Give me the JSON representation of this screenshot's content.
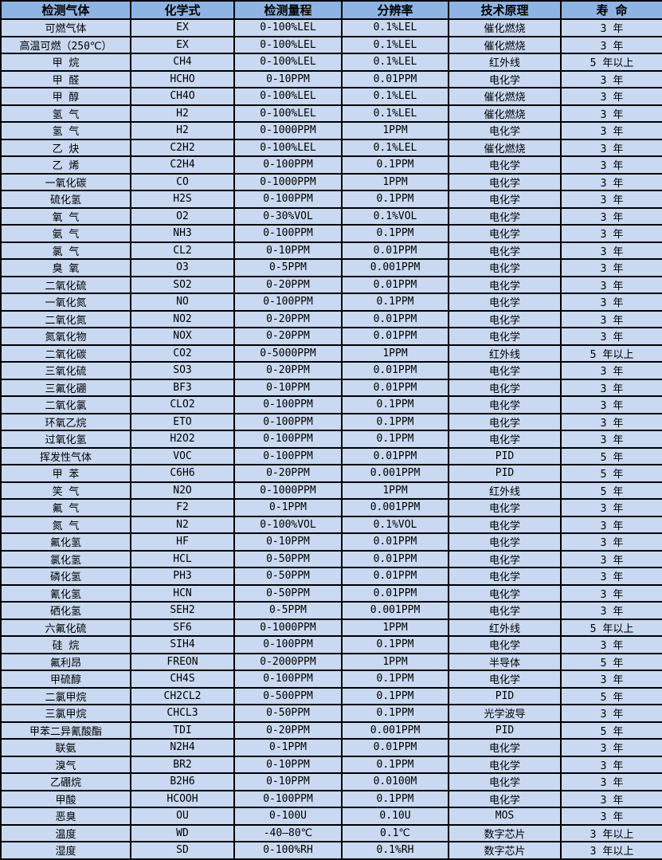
{
  "colors": {
    "header_bg": "#8EB4E3",
    "row_bg": "#C9D9F1",
    "border": "#000000",
    "text": "#000000"
  },
  "table": {
    "columns": [
      {
        "key": "gas",
        "label": "检测气体"
      },
      {
        "key": "formula",
        "label": "化学式"
      },
      {
        "key": "range",
        "label": "检测量程"
      },
      {
        "key": "resolution",
        "label": "分辨率"
      },
      {
        "key": "principle",
        "label": "技术原理"
      },
      {
        "key": "lifespan",
        "label": "寿 命"
      }
    ],
    "rows": [
      [
        "可燃气体",
        "EX",
        "0-100%LEL",
        "0.1%LEL",
        "催化燃烧",
        "3 年"
      ],
      [
        "高温可燃（250℃）",
        "EX",
        "0-100%LEL",
        "0.1%LEL",
        "催化燃烧",
        "3 年"
      ],
      [
        "甲 烷",
        "CH4",
        "0-100%LEL",
        "0.1%LEL",
        "红外线",
        "5 年以上"
      ],
      [
        "甲 醛",
        "HCHO",
        "0-10PPM",
        "0.01PPM",
        "电化学",
        "3 年"
      ],
      [
        "甲 醇",
        "CH4O",
        "0-100%LEL",
        "0.1%LEL",
        "催化燃烧",
        "3 年"
      ],
      [
        "氢 气",
        "H2",
        "0-100%LEL",
        "0.1%LEL",
        "催化燃烧",
        "3 年"
      ],
      [
        "氢 气",
        "H2",
        "0-1000PPM",
        "1PPM",
        "电化学",
        "3 年"
      ],
      [
        "乙 炔",
        "C2H2",
        "0-100%LEL",
        "0.1%LEL",
        "催化燃烧",
        "3 年"
      ],
      [
        "乙 烯",
        "C2H4",
        "0-100PPM",
        "0.1PPM",
        "电化学",
        "3 年"
      ],
      [
        "一氧化碳",
        "CO",
        "0-1000PPM",
        "1PPM",
        "电化学",
        "3 年"
      ],
      [
        "硫化氢",
        "H2S",
        "0-100PPM",
        "0.1PPM",
        "电化学",
        "3 年"
      ],
      [
        "氧 气",
        "O2",
        "0-30%VOL",
        "0.1%VOL",
        "电化学",
        "3 年"
      ],
      [
        "氨 气",
        "NH3",
        "0-100PPM",
        "0.1PPM",
        "电化学",
        "3 年"
      ],
      [
        "氯 气",
        "CL2",
        "0-10PPM",
        "0.01PPM",
        "电化学",
        "3 年"
      ],
      [
        "臭 氧",
        "O3",
        "0-5PPM",
        "0.001PPM",
        "电化学",
        "3 年"
      ],
      [
        "二氧化硫",
        "SO2",
        "0-20PPM",
        "0.01PPM",
        "电化学",
        "3 年"
      ],
      [
        "一氧化氮",
        "NO",
        "0-100PPM",
        "0.1PPM",
        "电化学",
        "3 年"
      ],
      [
        "二氧化氮",
        "NO2",
        "0-20PPM",
        "0.01PPM",
        "电化学",
        "3 年"
      ],
      [
        "氮氧化物",
        "NOX",
        "0-20PPM",
        "0.01PPM",
        "电化学",
        "3 年"
      ],
      [
        "二氧化碳",
        "CO2",
        "0-5000PPM",
        "1PPM",
        "红外线",
        "5 年以上"
      ],
      [
        "三氧化硫",
        "SO3",
        "0-20PPM",
        "0.01PPM",
        "电化学",
        "3 年"
      ],
      [
        "三氟化硼",
        "BF3",
        "0-10PPM",
        "0.01PPM",
        "电化学",
        "3 年"
      ],
      [
        "二氧化氯",
        "CLO2",
        "0-100PPM",
        "0.1PPM",
        "电化学",
        "3 年"
      ],
      [
        "环氧乙烷",
        "ETO",
        "0-100PPM",
        "0.1PPM",
        "电化学",
        "3 年"
      ],
      [
        "过氧化氢",
        "H2O2",
        "0-100PPM",
        "0.1PPM",
        "电化学",
        "3 年"
      ],
      [
        "挥发性气体",
        "VOC",
        "0-100PPM",
        "0.01PPM",
        "PID",
        "5 年"
      ],
      [
        "甲 苯",
        "C6H6",
        "0-20PPM",
        "0.001PPM",
        "PID",
        "5 年"
      ],
      [
        "笑 气",
        "N2O",
        "0-1000PPM",
        "1PPM",
        "红外线",
        "5 年"
      ],
      [
        "氟 气",
        "F2",
        "0-1PPM",
        "0.001PPM",
        "电化学",
        "3 年"
      ],
      [
        "氮 气",
        "N2",
        "0-100%VOL",
        "0.1%VOL",
        "电化学",
        "3 年"
      ],
      [
        "氟化氢",
        "HF",
        "0-10PPM",
        "0.01PPM",
        "电化学",
        "3 年"
      ],
      [
        "氯化氢",
        "HCL",
        "0-50PPM",
        "0.01PPM",
        "电化学",
        "3 年"
      ],
      [
        "磷化氢",
        "PH3",
        "0-50PPM",
        "0.01PPM",
        "电化学",
        "3 年"
      ],
      [
        "氰化氢",
        "HCN",
        "0-50PPM",
        "0.01PPM",
        "电化学",
        "3 年"
      ],
      [
        "硒化氢",
        "SEH2",
        "0-5PPM",
        "0.001PPM",
        "电化学",
        "3 年"
      ],
      [
        "六氟化硫",
        "SF6",
        "0-1000PPM",
        "1PPM",
        "红外线",
        "5 年以上"
      ],
      [
        "硅 烷",
        "SIH4",
        "0-100PPM",
        "0.1PPM",
        "电化学",
        "3 年"
      ],
      [
        "氟利昂",
        "FREON",
        "0-2000PPM",
        "1PPM",
        "半导体",
        "5 年"
      ],
      [
        "甲硫醇",
        "CH4S",
        "0-100PPM",
        "0.1PPM",
        "电化学",
        "3 年"
      ],
      [
        "二氯甲烷",
        "CH2CL2",
        "0-500PPM",
        "0.1PPM",
        "PID",
        "5 年"
      ],
      [
        "三氯甲烷",
        "CHCL3",
        "0-50PPM",
        "0.1PPM",
        "光学波导",
        "3 年"
      ],
      [
        "甲苯二异氰酸酯",
        "TDI",
        "0-20PPM",
        "0.001PPM",
        "PID",
        "5 年"
      ],
      [
        "联氨",
        "N2H4",
        "0-1PPM",
        "0.01PPM",
        "电化学",
        "3 年"
      ],
      [
        "溴气",
        "BR2",
        "0-10PPM",
        "0.1PPM",
        "电化学",
        "3 年"
      ],
      [
        "乙硼烷",
        "B2H6",
        "0-10PPM",
        "0.0100M",
        "电化学",
        "3 年"
      ],
      [
        "甲酸",
        "HCOOH",
        "0-100PPM",
        "0.1PPM",
        "电化学",
        "3 年"
      ],
      [
        "恶臭",
        "OU",
        "0-100U",
        "0.10U",
        "MOS",
        "3 年"
      ],
      [
        "温度",
        "WD",
        "-40—80℃",
        "0.1℃",
        "数字芯片",
        "3 年以上"
      ],
      [
        "湿度",
        "SD",
        "0-100%RH",
        "0.1%RH",
        "数字芯片",
        "3 年以上"
      ]
    ]
  }
}
